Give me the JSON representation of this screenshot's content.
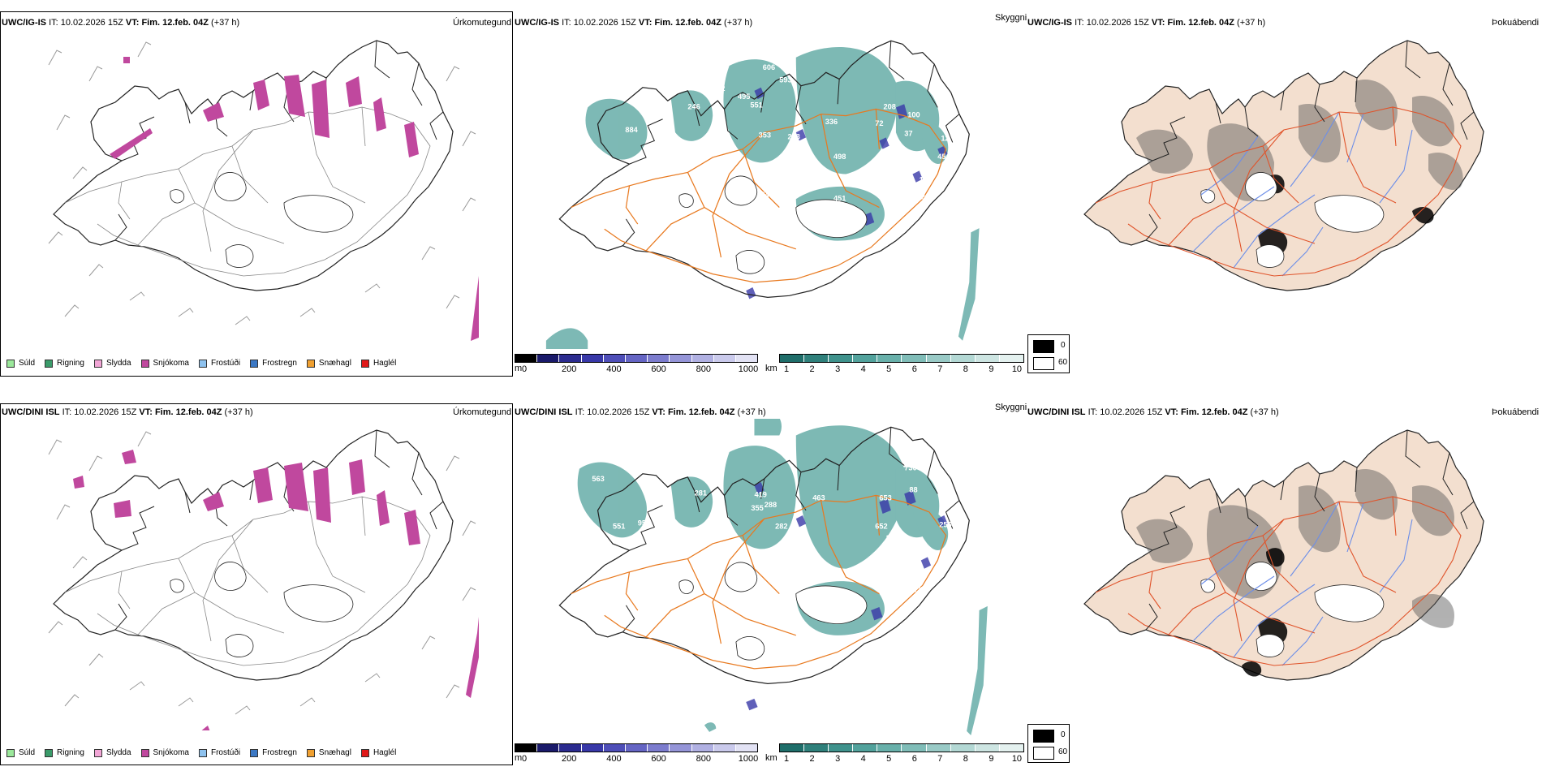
{
  "rows": [
    {
      "model": "UWC/IG-IS",
      "it_label": "IT:",
      "it_value": "10.02.2026 15Z",
      "vt_label": "VT:",
      "vt_value": "Fim. 12.feb. 04Z",
      "lead": "(+37 h)"
    },
    {
      "model": "UWC/DINI ISL",
      "it_label": "IT:",
      "it_value": "10.02.2026 15Z",
      "vt_label": "VT:",
      "vt_value": "Fim. 12.feb. 04Z",
      "lead": "(+37 h)"
    }
  ],
  "panel_titles": {
    "precip_type": "Úrkomutegund",
    "visibility": "Skyggni",
    "fog": "Þokuábendi"
  },
  "precip_legend": [
    {
      "label": "Súld",
      "color": "#9be89b"
    },
    {
      "label": "Rigning",
      "color": "#3a9b6a"
    },
    {
      "label": "Slydda",
      "color": "#f2a6d6"
    },
    {
      "label": "Snjókoma",
      "color": "#c0489e"
    },
    {
      "label": "Frostúði",
      "color": "#8ec2ee"
    },
    {
      "label": "Frostregn",
      "color": "#3b78c4"
    },
    {
      "label": "Snæhagl",
      "color": "#f0a030"
    },
    {
      "label": "Haglél",
      "color": "#e01818"
    }
  ],
  "height_bar": {
    "unit": "m",
    "ticks": [
      "0",
      "200",
      "400",
      "600",
      "800",
      "1000"
    ],
    "colors": [
      "#000000",
      "#1a1a6a",
      "#2b2b8f",
      "#3838a8",
      "#4e4eb8",
      "#6565c4",
      "#7c7cce",
      "#9595d8",
      "#b0b0e2",
      "#cacaec",
      "#e2e2f4"
    ]
  },
  "vis_bar": {
    "unit": "km",
    "ticks": [
      "1",
      "2",
      "3",
      "4",
      "5",
      "6",
      "7",
      "8",
      "9",
      "10"
    ],
    "colors": [
      "#1f6e6a",
      "#2f807b",
      "#3f928c",
      "#52a29c",
      "#68b0aa",
      "#80bdb8",
      "#99cac6",
      "#b3d8d4",
      "#cde5e2",
      "#e4f1ef"
    ]
  },
  "fog_legend": {
    "top": "0",
    "bottom": "60"
  },
  "vis_labels_top": [
    "884",
    "246",
    "552",
    "495",
    "551",
    "606",
    "593",
    "353",
    "283",
    "336",
    "498",
    "208",
    "100",
    "496",
    "72",
    "37",
    "34",
    "547",
    "12",
    "454",
    "122",
    "451",
    "19"
  ],
  "vis_labels_bottom": [
    "563",
    "551",
    "951",
    "281",
    "419",
    "288",
    "282",
    "463",
    "652",
    "730",
    "88",
    "653",
    "33",
    "256",
    "127",
    "63",
    "458",
    "355"
  ],
  "colors": {
    "snow": "#c0489e",
    "land_fog": "#f3dfcf",
    "roads": "#e8791f",
    "rivers": "#6c8ee8",
    "vis_teal": "#52a29c"
  }
}
